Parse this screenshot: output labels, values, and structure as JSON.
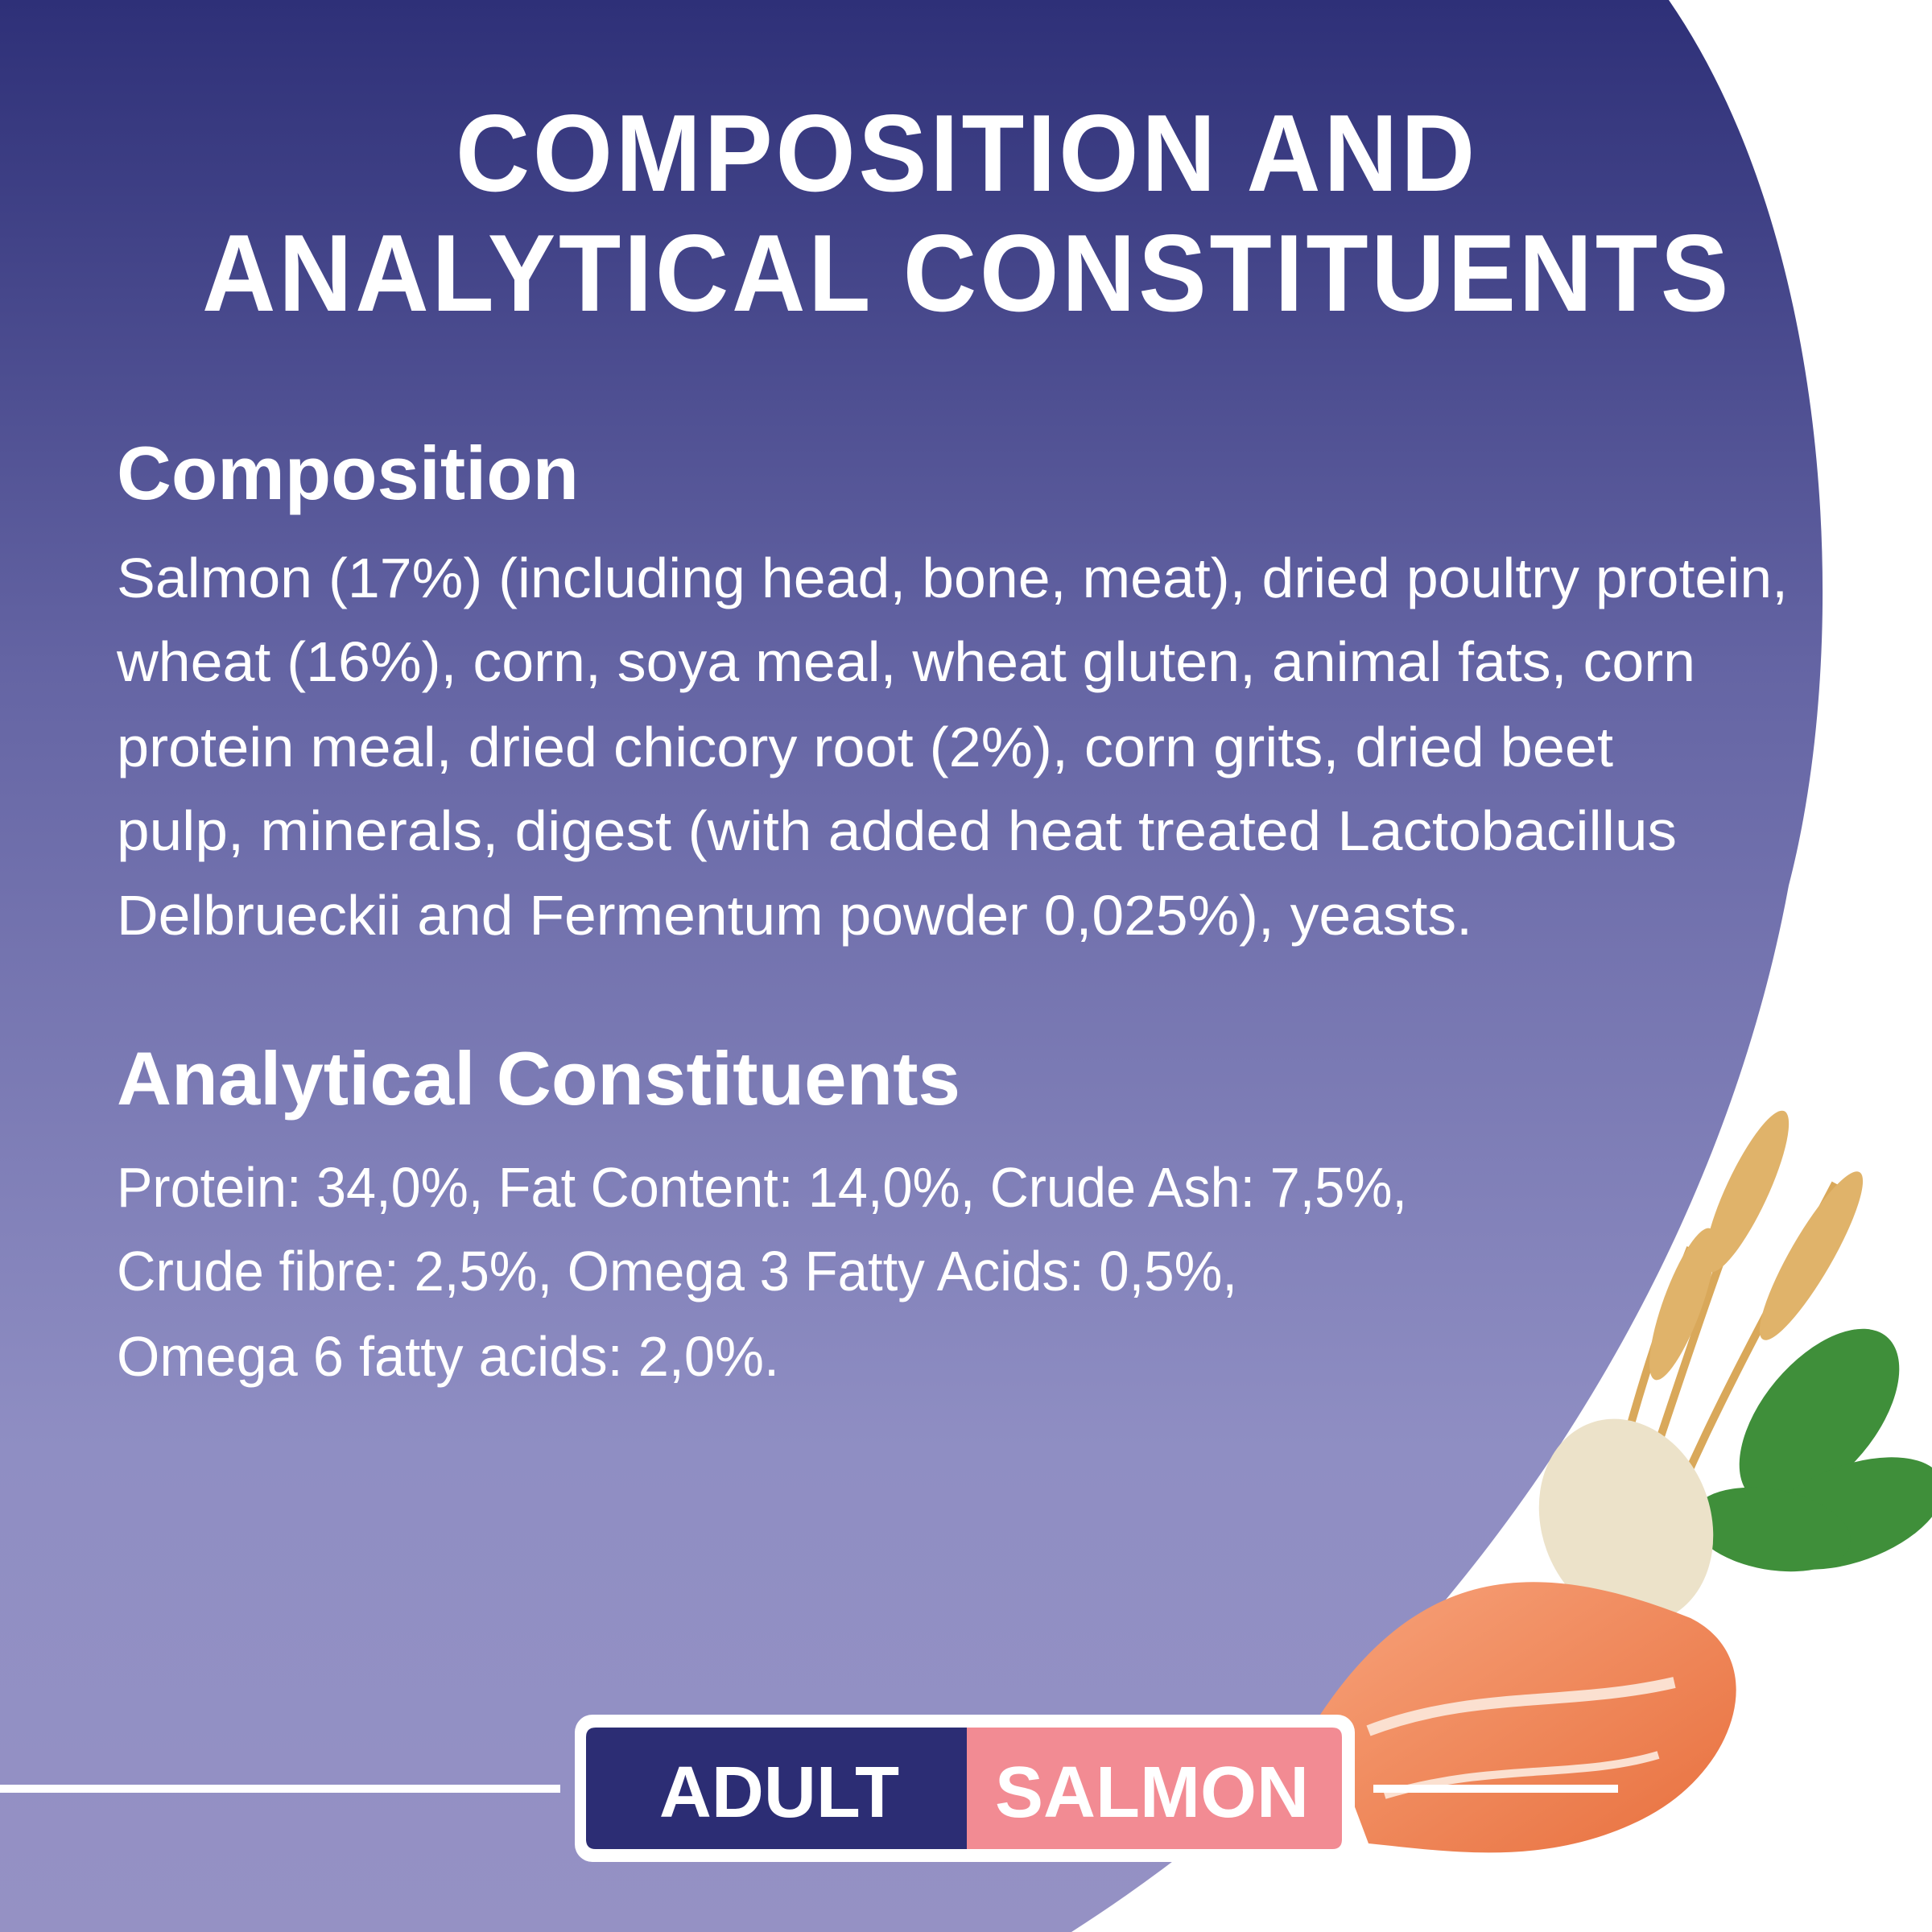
{
  "title": {
    "lines": [
      "COMPOSITION AND",
      "ANALYTICAL CONSTITUENTS"
    ]
  },
  "composition": {
    "heading": "Composition",
    "lines": [
      "Salmon (17%) (including head, bone, meat), dried poultry protein,",
      "wheat (16%), corn, soya meal, wheat gluten, animal fats, corn",
      "protein meal, dried chicory root (2%), corn grits, dried beet",
      "pulp, minerals, digest (with added heat treated Lactobacillus",
      "Delbrueckii and Fermentum powder 0,025%), yeasts."
    ]
  },
  "analytical": {
    "heading": "Analytical Constituents",
    "lines": [
      "Protein: 34,0%, Fat Content: 14,0%, Crude Ash: 7,5%,",
      "Crude fibre: 2,5%, Omega 3 Fatty Acids: 0,5%,",
      "Omega 6 fatty acids: 2,0%."
    ]
  },
  "badge": {
    "left": "ADULT",
    "right": "SALMON"
  }
}
